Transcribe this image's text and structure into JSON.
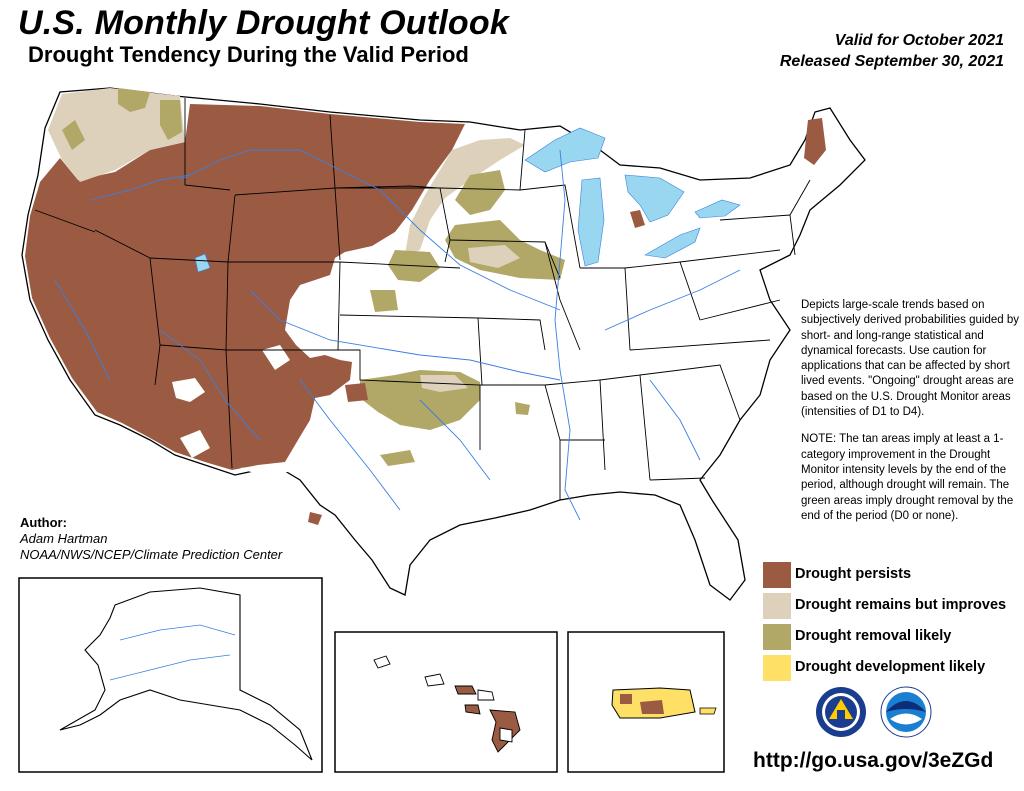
{
  "header": {
    "title": "U.S. Monthly Drought Outlook",
    "subtitle": "Drought Tendency During the Valid Period",
    "valid_for": "Valid for October 2021",
    "released": "Released September 30, 2021"
  },
  "description": {
    "para1": "Depicts large-scale trends based on subjectively derived probabilities guided by short- and long-range statistical and dynamical forecasts. Use caution for applications that can be affected by short lived events. \"Ongoing\" drought areas are based on the U.S. Drought Monitor areas (intensities of D1 to D4).",
    "para2": "NOTE: The tan areas imply at least a 1-category improvement in the Drought Monitor intensity levels by the end of the period, although drought will remain. The green areas imply drought removal by the end of the period (D0 or none)."
  },
  "author": {
    "label": "Author:",
    "name": "Adam Hartman",
    "org": "NOAA/NWS/NCEP/Climate Prediction Center"
  },
  "legend": [
    {
      "label": "Drought persists",
      "color": "#9b5b43"
    },
    {
      "label": "Drought remains but improves",
      "color": "#ddd1bb"
    },
    {
      "label": "Drought removal likely",
      "color": "#b1a766"
    },
    {
      "label": "Drought development likely",
      "color": "#ffe066"
    }
  ],
  "colors": {
    "persists": "#9b5b43",
    "improves": "#ddd1bb",
    "removal": "#b1a766",
    "development": "#ffe066",
    "water": "#99d6f0",
    "river": "#3b7fe0"
  },
  "footer": {
    "url": "http://go.usa.gov/3eZGd"
  },
  "logos": [
    {
      "name": "NWS",
      "icon": "nws-logo-icon"
    },
    {
      "name": "NOAA",
      "icon": "noaa-logo-icon"
    }
  ]
}
